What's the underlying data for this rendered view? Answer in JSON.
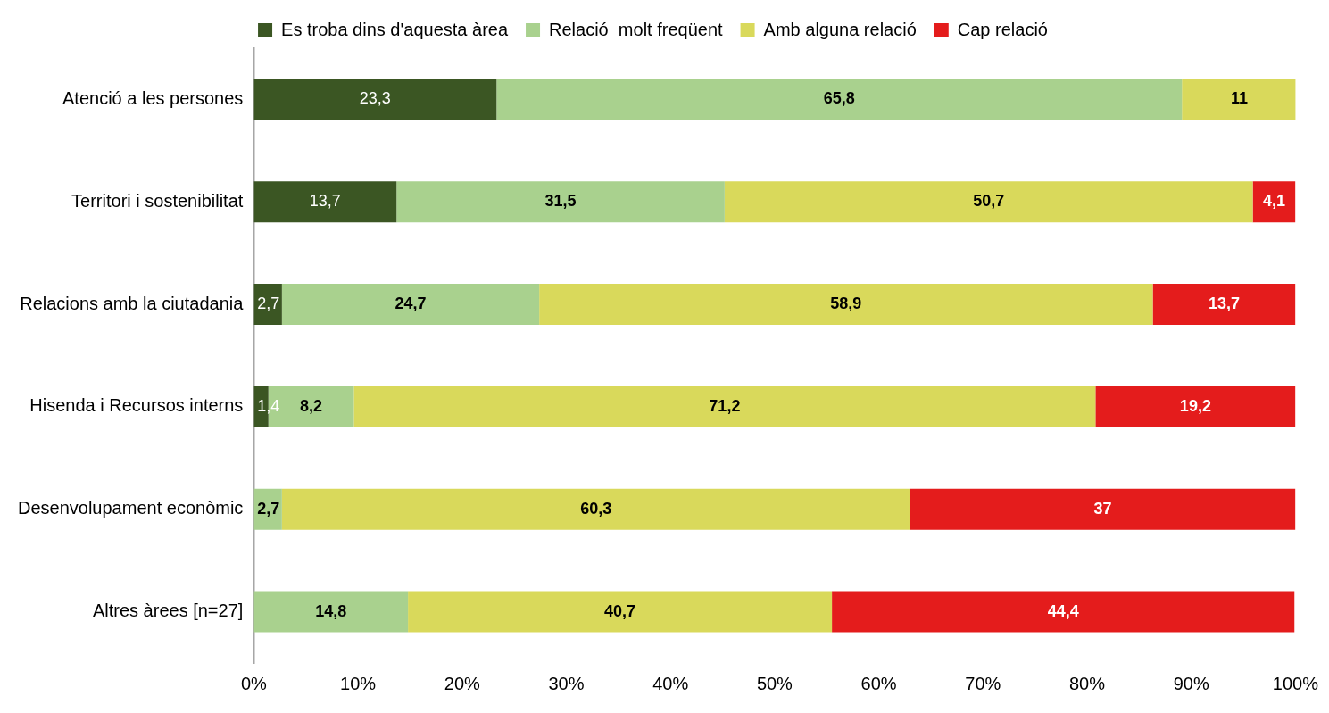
{
  "chart_data": {
    "type": "bar",
    "orientation": "horizontal",
    "stacked": true,
    "legend": "top",
    "grid": false,
    "categories": [
      "Atenció a les persones",
      "Territori i sostenibilitat",
      "Relacions amb la ciutadania",
      "Hisenda i Recursos interns",
      "Desenvolupament econòmic",
      "Altres àrees [n=27]"
    ],
    "xlim": [
      0,
      100
    ],
    "xticks": [
      {
        "value": 0,
        "label": "0%"
      },
      {
        "value": 10,
        "label": "10%"
      },
      {
        "value": 20,
        "label": "20%"
      },
      {
        "value": 30,
        "label": "30%"
      },
      {
        "value": 40,
        "label": "40%"
      },
      {
        "value": 50,
        "label": "50%"
      },
      {
        "value": 60,
        "label": "60%"
      },
      {
        "value": 70,
        "label": "70%"
      },
      {
        "value": 80,
        "label": "80%"
      },
      {
        "value": 90,
        "label": "90%"
      },
      {
        "value": 100,
        "label": "100%"
      }
    ],
    "series": [
      {
        "name": "Es troba dins d'aquesta àrea",
        "color": "#3b5623",
        "values": [
          23.3,
          13.7,
          2.7,
          1.4,
          0,
          0
        ],
        "value_labels": [
          "23,3",
          "13,7",
          "2,7",
          "1,4",
          null,
          null
        ]
      },
      {
        "name": "Relació  molt freqüent",
        "color": "#a9d18e",
        "values": [
          65.8,
          31.5,
          24.7,
          8.2,
          2.7,
          14.8
        ],
        "value_labels": [
          "65,8",
          "31,5",
          "24,7",
          "8,2",
          "2,7",
          "14,8"
        ]
      },
      {
        "name": "Amb alguna relació",
        "color": "#d9d95b",
        "values": [
          11,
          50.7,
          58.9,
          71.2,
          60.3,
          40.7
        ],
        "value_labels": [
          "11",
          "50,7",
          "58,9",
          "71,2",
          "60,3",
          "40,7"
        ]
      },
      {
        "name": "Cap relació",
        "color": "#e41c1c",
        "values": [
          0,
          4.1,
          13.7,
          19.2,
          37,
          44.4
        ],
        "value_labels": [
          null,
          "4,1",
          "13,7",
          "19,2",
          "37",
          "44,4"
        ]
      }
    ]
  }
}
